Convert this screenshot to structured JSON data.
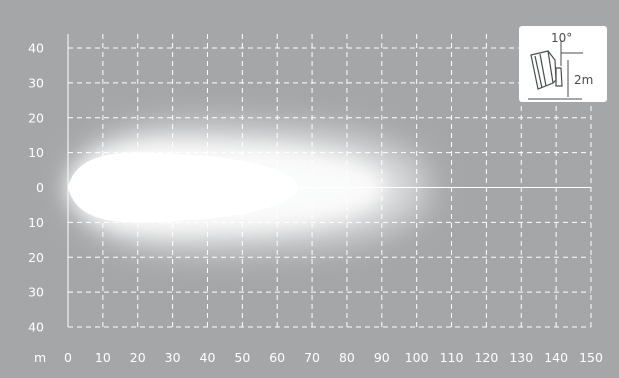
{
  "chart_data": {
    "type": "heatmap",
    "title": "",
    "xlabel": "m",
    "ylabel": "",
    "x_ticks": [
      "0",
      "10",
      "20",
      "30",
      "40",
      "50",
      "60",
      "70",
      "80",
      "90",
      "100",
      "110",
      "120",
      "130",
      "140",
      "150"
    ],
    "y_ticks": [
      "40",
      "30",
      "20",
      "10",
      "0",
      "10",
      "20",
      "30",
      "40"
    ],
    "xlim": [
      0,
      150
    ],
    "ylim": [
      -40,
      40
    ],
    "grid": true,
    "grid_style": "dashed",
    "beam": {
      "shape": "spot",
      "near_edge_x": 0,
      "far_reach_x": 103,
      "max_half_width_y": 17
    },
    "inset": {
      "tilt_label": "10°",
      "mount_height_label": "2m",
      "position": "top-right"
    },
    "colors": {
      "background": "#a4a6a8",
      "grid": "#ffffff",
      "beam": "#ffffff",
      "inset_bg": "#ffffff",
      "inset_ink": "#4a4d50"
    }
  }
}
